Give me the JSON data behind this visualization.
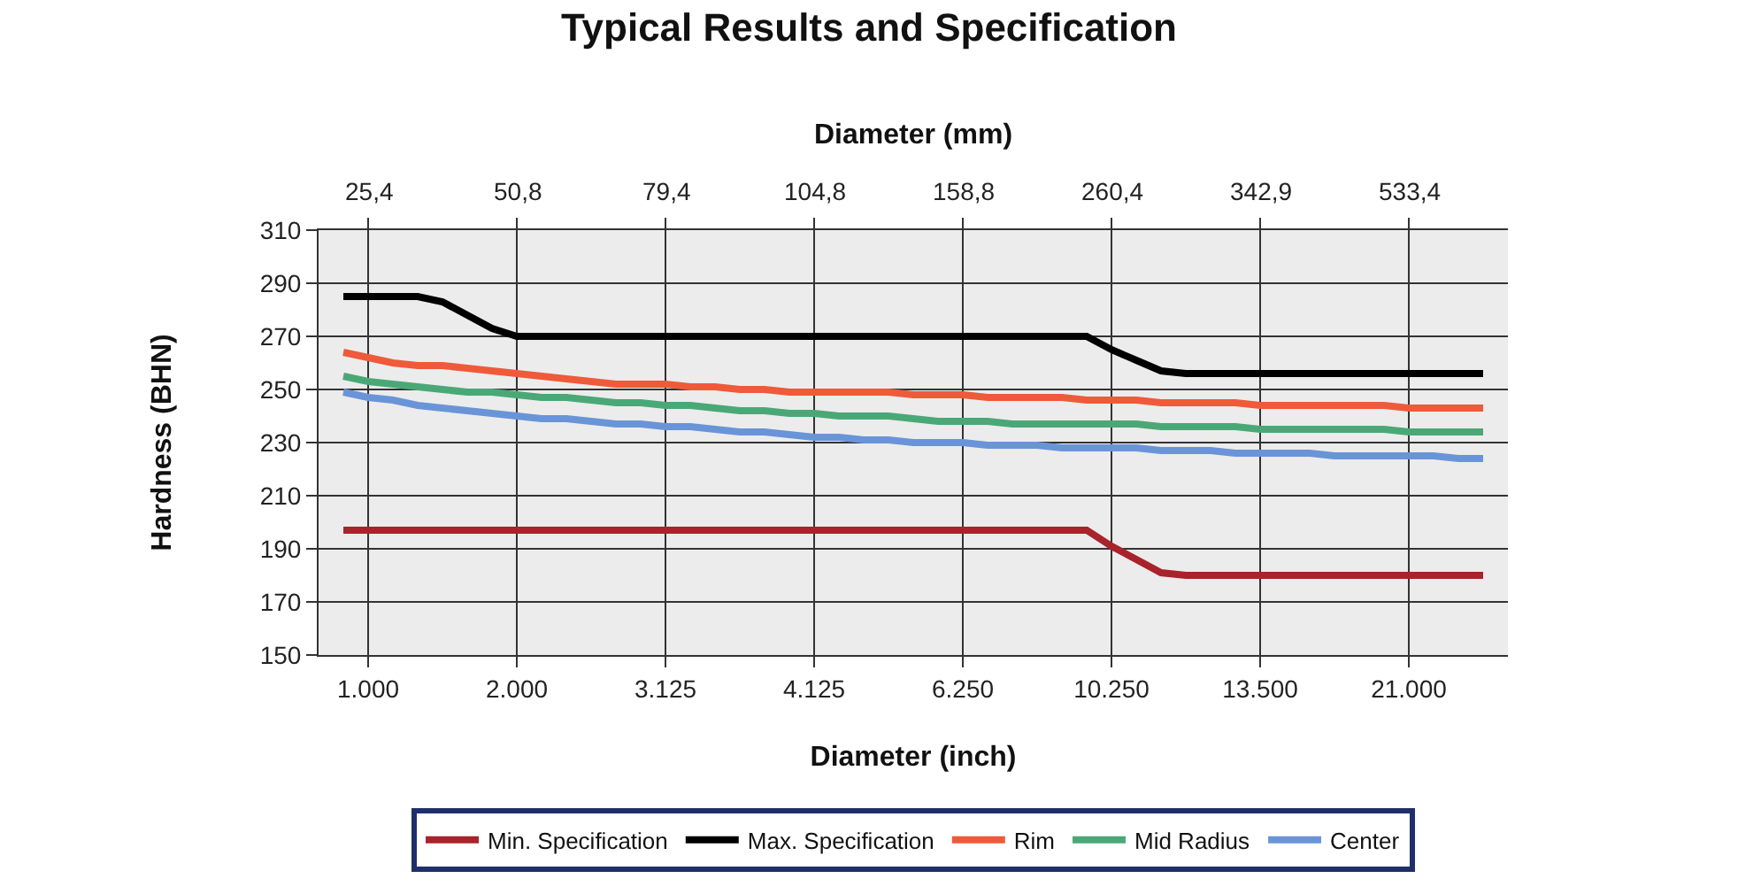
{
  "chart_data": {
    "type": "line",
    "title": "Typical Results and Specification",
    "x2label": "Diameter (mm)",
    "xlabel": "Diameter (inch)",
    "ylabel": "Hardness (BHN)",
    "categories": [
      null,
      null,
      "1.000",
      null,
      null,
      null,
      null,
      null,
      "2.000",
      null,
      null,
      null,
      null,
      null,
      "3.125",
      null,
      null,
      null,
      null,
      null,
      "4.125",
      null,
      null,
      null,
      null,
      null,
      "6.250",
      null,
      null,
      null,
      null,
      null,
      "10.250",
      null,
      null,
      null,
      null,
      null,
      "13.500",
      null,
      null,
      null,
      null,
      null,
      "21.000",
      null,
      null,
      null,
      null
    ],
    "annotations": [
      "25,4",
      "50,8",
      "79,4",
      "104,8",
      "158,8",
      "260,4",
      "342,9",
      "533,4"
    ],
    "ylim": [
      150,
      310
    ],
    "yticks": [
      150,
      170,
      190,
      210,
      230,
      250,
      270,
      290,
      310
    ],
    "grid": true,
    "legend": "bottom",
    "marker": "none",
    "line_style": "solid",
    "series": [
      {
        "name": "Min. Specification",
        "color": "#a8232b",
        "values": [
          null,
          197,
          197,
          197,
          197,
          197,
          197,
          197,
          197,
          197,
          197,
          197,
          197,
          197,
          197,
          197,
          197,
          197,
          197,
          197,
          197,
          197,
          197,
          197,
          197,
          197,
          197,
          197,
          197,
          197,
          197,
          197,
          191,
          186,
          181,
          180,
          180,
          180,
          180,
          180,
          180,
          180,
          180,
          180,
          180,
          180,
          180,
          180,
          null
        ]
      },
      {
        "name": "Max. Specification",
        "color": "#000000",
        "values": [
          null,
          285,
          285,
          285,
          285,
          283,
          278,
          273,
          270,
          270,
          270,
          270,
          270,
          270,
          270,
          270,
          270,
          270,
          270,
          270,
          270,
          270,
          270,
          270,
          270,
          270,
          270,
          270,
          270,
          270,
          270,
          270,
          265,
          261,
          257,
          256,
          256,
          256,
          256,
          256,
          256,
          256,
          256,
          256,
          256,
          256,
          256,
          256,
          null
        ]
      },
      {
        "name": "Rim",
        "color": "#ee5a3a",
        "values": [
          null,
          264,
          262,
          260,
          259,
          259,
          258,
          257,
          256,
          255,
          254,
          253,
          252,
          252,
          252,
          251,
          251,
          250,
          250,
          249,
          249,
          249,
          249,
          249,
          248,
          248,
          248,
          247,
          247,
          247,
          247,
          246,
          246,
          246,
          245,
          245,
          245,
          245,
          244,
          244,
          244,
          244,
          244,
          244,
          243,
          243,
          243,
          243,
          null
        ]
      },
      {
        "name": "Mid Radius",
        "color": "#4aa877",
        "values": [
          null,
          255,
          253,
          252,
          251,
          250,
          249,
          249,
          248,
          247,
          247,
          246,
          245,
          245,
          244,
          244,
          243,
          242,
          242,
          241,
          241,
          240,
          240,
          240,
          239,
          238,
          238,
          238,
          237,
          237,
          237,
          237,
          237,
          237,
          236,
          236,
          236,
          236,
          235,
          235,
          235,
          235,
          235,
          235,
          234,
          234,
          234,
          234,
          null
        ]
      },
      {
        "name": "Center",
        "color": "#6a94d8",
        "values": [
          null,
          249,
          247,
          246,
          244,
          243,
          242,
          241,
          240,
          239,
          239,
          238,
          237,
          237,
          236,
          236,
          235,
          234,
          234,
          233,
          232,
          232,
          231,
          231,
          230,
          230,
          230,
          229,
          229,
          229,
          228,
          228,
          228,
          228,
          227,
          227,
          227,
          226,
          226,
          226,
          226,
          225,
          225,
          225,
          225,
          225,
          224,
          224,
          null
        ]
      }
    ]
  }
}
